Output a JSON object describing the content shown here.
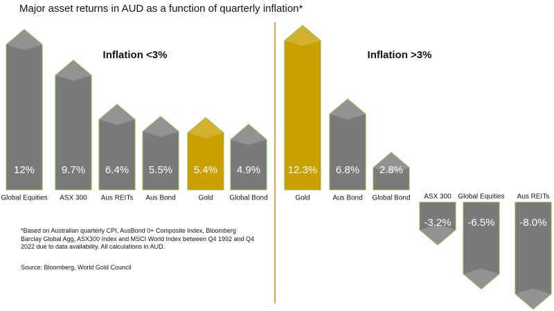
{
  "title": "Major asset returns in AUD as a function of quarterly inflation*",
  "footnote": "*Based on Australian quarterly CPI, AusBond 0+ Composite Index, Bloomberg Barclay Global Agg, ASX300 Index and MSCI World Index between Q4 1992 and Q4 2022 due to data availability. All calculations in AUD.",
  "source": "Source: Bloomberg, World Gold Council",
  "chart_data": [
    {
      "type": "bar",
      "title": "Inflation <3%",
      "categories": [
        "Global Equities",
        "ASX 300",
        "Aus REITs",
        "Aus Bond",
        "Gold",
        "Global Bond"
      ],
      "values": [
        12,
        9.7,
        6.4,
        5.5,
        5.4,
        4.9
      ],
      "value_labels": [
        "12%",
        "9.7%",
        "6.4%",
        "5.5%",
        "5.4%",
        "4.9%"
      ],
      "colors": [
        "#7a7a7a",
        "#7a7a7a",
        "#7a7a7a",
        "#7a7a7a",
        "#c9a000",
        "#7a7a7a"
      ]
    },
    {
      "type": "bar",
      "title": "Inflation >3%",
      "categories": [
        "Gold",
        "Aus Bond",
        "Global Bond",
        "ASX 300",
        "Global Equities",
        "Aus REITs"
      ],
      "values": [
        12.3,
        6.8,
        2.8,
        -3.2,
        -6.5,
        -8.0
      ],
      "value_labels": [
        "12.3%",
        "6.8%",
        "2.8%",
        "-3.2%",
        "-6.5%",
        "-8.0%"
      ],
      "colors": [
        "#c9a000",
        "#7a7a7a",
        "#7a7a7a",
        "#7a7a7a",
        "#7a7a7a",
        "#7a7a7a"
      ]
    }
  ]
}
